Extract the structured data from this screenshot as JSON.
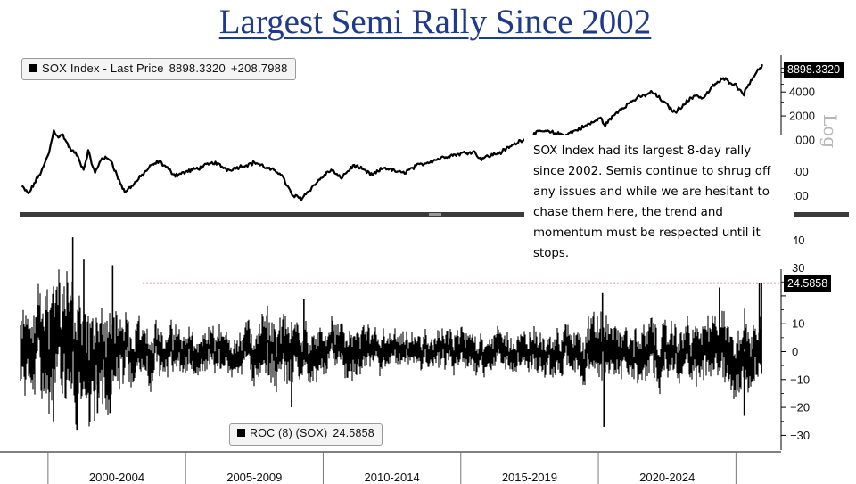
{
  "title": "Largest Semi Rally Since 2002",
  "annotation": "SOX Index had its largest 8-day rally since 2002. Semis continue to shrug off any issues and while we are hesitant to chase them here, the trend and momentum must be respected until it stops.",
  "legend_price": {
    "name": "SOX Index - Last Price",
    "value": "8898.3320",
    "change": "+208.7988"
  },
  "legend_roc": {
    "name": "ROC (8) (SOX)",
    "value": "24.5858"
  },
  "tag_price": "8898.3320",
  "tag_roc": "24.5858",
  "scale_label": "Log",
  "colors": {
    "title": "#1f3a8a",
    "series": "#000000",
    "reference_line": "#d40000",
    "divider": "#3a3a3a"
  },
  "chart_data": [
    {
      "type": "line",
      "title": "",
      "series": [
        {
          "name": "SOX Index - Last Price",
          "points": [
            {
              "x": "1999-01",
              "y": 260
            },
            {
              "x": "1999-04",
              "y": 210
            },
            {
              "x": "1999-07",
              "y": 300
            },
            {
              "x": "1999-10",
              "y": 420
            },
            {
              "x": "2000-01",
              "y": 700
            },
            {
              "x": "2000-03",
              "y": 1300
            },
            {
              "x": "2000-05",
              "y": 1100
            },
            {
              "x": "2000-07",
              "y": 1150
            },
            {
              "x": "2000-10",
              "y": 780
            },
            {
              "x": "2001-01",
              "y": 650
            },
            {
              "x": "2001-04",
              "y": 420
            },
            {
              "x": "2001-06",
              "y": 720
            },
            {
              "x": "2001-09",
              "y": 380
            },
            {
              "x": "2001-12",
              "y": 600
            },
            {
              "x": "2002-04",
              "y": 560
            },
            {
              "x": "2002-07",
              "y": 330
            },
            {
              "x": "2002-10",
              "y": 220
            },
            {
              "x": "2003-03",
              "y": 300
            },
            {
              "x": "2003-09",
              "y": 460
            },
            {
              "x": "2004-01",
              "y": 540
            },
            {
              "x": "2004-08",
              "y": 360
            },
            {
              "x": "2005-06",
              "y": 440
            },
            {
              "x": "2006-01",
              "y": 520
            },
            {
              "x": "2006-07",
              "y": 420
            },
            {
              "x": "2007-07",
              "y": 520
            },
            {
              "x": "2007-12",
              "y": 440
            },
            {
              "x": "2008-06",
              "y": 380
            },
            {
              "x": "2008-11",
              "y": 200
            },
            {
              "x": "2009-03",
              "y": 185
            },
            {
              "x": "2009-12",
              "y": 340
            },
            {
              "x": "2010-04",
              "y": 420
            },
            {
              "x": "2010-08",
              "y": 330
            },
            {
              "x": "2011-02",
              "y": 480
            },
            {
              "x": "2011-10",
              "y": 360
            },
            {
              "x": "2012-03",
              "y": 450
            },
            {
              "x": "2012-11",
              "y": 380
            },
            {
              "x": "2013-06",
              "y": 480
            },
            {
              "x": "2014-06",
              "y": 620
            },
            {
              "x": "2015-06",
              "y": 720
            },
            {
              "x": "2015-09",
              "y": 580
            },
            {
              "x": "2016-06",
              "y": 700
            },
            {
              "x": "2017-03",
              "y": 1000
            },
            {
              "x": "2017-12",
              "y": 1300
            },
            {
              "x": "2018-10",
              "y": 1150
            },
            {
              "x": "2019-06",
              "y": 1450
            },
            {
              "x": "2020-02",
              "y": 1900
            },
            {
              "x": "2020-03",
              "y": 1500
            },
            {
              "x": "2020-09",
              "y": 2300
            },
            {
              "x": "2021-04",
              "y": 3200
            },
            {
              "x": "2021-12",
              "y": 4000
            },
            {
              "x": "2022-05",
              "y": 3000
            },
            {
              "x": "2022-10",
              "y": 2200
            },
            {
              "x": "2023-01",
              "y": 2700
            },
            {
              "x": "2023-07",
              "y": 3700
            },
            {
              "x": "2023-10",
              "y": 3300
            },
            {
              "x": "2024-03",
              "y": 4900
            },
            {
              "x": "2024-07",
              "y": 5900
            },
            {
              "x": "2024-12",
              "y": 5000
            },
            {
              "x": "2025-04",
              "y": 3800
            },
            {
              "x": "2025-07",
              "y": 5700
            },
            {
              "x": "2025-10",
              "y": 7300
            },
            {
              "x": "2025-12",
              "y": 8898.332
            }
          ]
        }
      ],
      "y_scale": "log",
      "yticks": [
        200,
        400,
        1000,
        2000,
        4000
      ],
      "ylim": [
        130,
        11000
      ]
    },
    {
      "type": "line",
      "series": [
        {
          "name": "ROC (8) (SOX)",
          "volatility_by_year": [
            {
              "x": 1999,
              "amp": 14
            },
            {
              "x": 2000,
              "amp": 24
            },
            {
              "x": 2001,
              "amp": 27
            },
            {
              "x": 2002,
              "amp": 20
            },
            {
              "x": 2003,
              "amp": 12
            },
            {
              "x": 2004,
              "amp": 10
            },
            {
              "x": 2005,
              "amp": 8
            },
            {
              "x": 2006,
              "amp": 9
            },
            {
              "x": 2007,
              "amp": 8
            },
            {
              "x": 2008,
              "amp": 14
            },
            {
              "x": 2009,
              "amp": 12
            },
            {
              "x": 2010,
              "amp": 9
            },
            {
              "x": 2011,
              "amp": 10
            },
            {
              "x": 2012,
              "amp": 8
            },
            {
              "x": 2013,
              "amp": 6
            },
            {
              "x": 2014,
              "amp": 7
            },
            {
              "x": 2015,
              "amp": 8
            },
            {
              "x": 2016,
              "amp": 8
            },
            {
              "x": 2017,
              "amp": 7
            },
            {
              "x": 2018,
              "amp": 9
            },
            {
              "x": 2019,
              "amp": 9
            },
            {
              "x": 2020,
              "amp": 14
            },
            {
              "x": 2021,
              "amp": 9
            },
            {
              "x": 2022,
              "amp": 12
            },
            {
              "x": 2023,
              "amp": 10
            },
            {
              "x": 2024,
              "amp": 13
            },
            {
              "x": 2025,
              "amp": 14
            }
          ],
          "spikes": [
            {
              "x": 2000.2,
              "y": -25
            },
            {
              "x": 2000.9,
              "y": 41
            },
            {
              "x": 2001.05,
              "y": -28
            },
            {
              "x": 2001.3,
              "y": 33
            },
            {
              "x": 2001.8,
              "y": -22
            },
            {
              "x": 2002.35,
              "y": 31
            },
            {
              "x": 2002.25,
              "y": -22
            },
            {
              "x": 2008.85,
              "y": -20
            },
            {
              "x": 2009.3,
              "y": 19
            },
            {
              "x": 2020.2,
              "y": -27
            },
            {
              "x": 2020.15,
              "y": 21
            },
            {
              "x": 2024.4,
              "y": 23
            },
            {
              "x": 2025.3,
              "y": -23
            },
            {
              "x": 2025.85,
              "y": 24.5858
            }
          ]
        }
      ],
      "reference_line": 24.5858,
      "yticks": [
        -30,
        -20,
        -10,
        0,
        10,
        20,
        30,
        40
      ],
      "ylim": [
        -33,
        46
      ]
    }
  ],
  "x_axis": {
    "labels": [
      "2000-2004",
      "2005-2009",
      "2010-2014",
      "2015-2019",
      "2020-2024"
    ]
  }
}
